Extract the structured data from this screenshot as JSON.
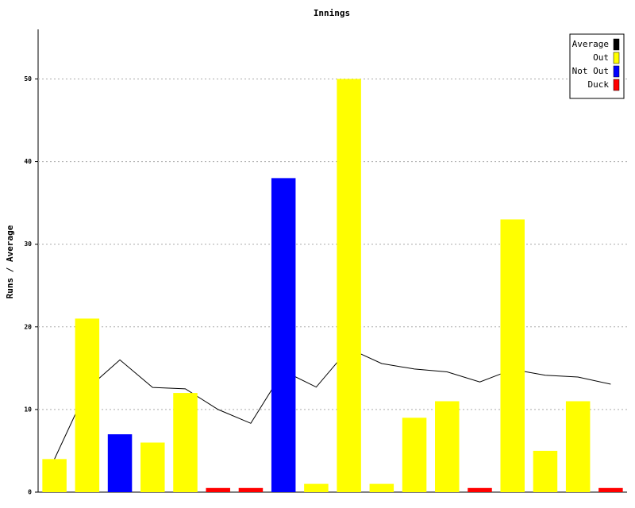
{
  "chart_data": {
    "type": "bar",
    "title": "Innings",
    "y_label": "Runs / Average",
    "categories": [
      null,
      null,
      null,
      null,
      null,
      null,
      null,
      null,
      null,
      null,
      null,
      null,
      null,
      null,
      null,
      null,
      null,
      null
    ],
    "series": [
      {
        "name": "Average",
        "type": "line",
        "color": "#000000",
        "values": [
          4,
          12.5,
          16,
          12.67,
          12.5,
          10,
          8.33,
          14.67,
          12.71,
          17.38,
          15.56,
          14.9,
          14.55,
          13.33,
          14.85,
          14.14,
          13.93,
          13.06
        ]
      },
      {
        "name": "Out",
        "color": "#ffff00",
        "values": [
          4,
          21,
          null,
          6,
          12,
          null,
          null,
          null,
          1,
          50,
          1,
          9,
          11,
          null,
          33,
          5,
          11,
          null
        ]
      },
      {
        "name": "Not Out",
        "color": "#0000ff",
        "values": [
          null,
          null,
          7,
          null,
          null,
          null,
          null,
          38,
          null,
          null,
          null,
          null,
          null,
          null,
          null,
          null,
          null,
          null
        ]
      },
      {
        "name": "Duck",
        "color": "#ff0000",
        "values": [
          null,
          null,
          null,
          null,
          null,
          0.5,
          0.5,
          null,
          null,
          null,
          null,
          null,
          null,
          0.5,
          null,
          null,
          null,
          0.5
        ]
      }
    ],
    "ylim": [
      0,
      56
    ],
    "yticks": [
      0,
      10,
      20,
      30,
      40,
      50
    ],
    "grid": true,
    "legend": "top-right"
  }
}
